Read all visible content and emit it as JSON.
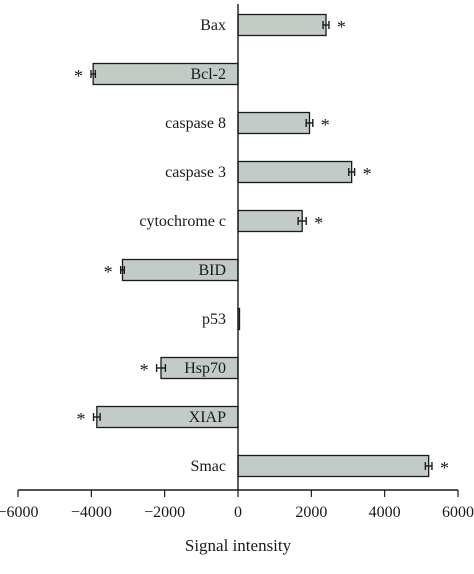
{
  "chart_data": {
    "type": "bar",
    "orientation": "horizontal",
    "categories": [
      "Bax",
      "Bcl-2",
      "caspase 8",
      "caspase 3",
      "cytochrome c",
      "BID",
      "p53",
      "Hsp70",
      "XIAP",
      "Smac"
    ],
    "values": [
      2400,
      -3950,
      1950,
      3100,
      1750,
      -3150,
      30,
      -2100,
      -3850,
      5200
    ],
    "errors": [
      80,
      60,
      90,
      80,
      110,
      50,
      0,
      120,
      90,
      90
    ],
    "significant": [
      true,
      true,
      true,
      true,
      true,
      true,
      false,
      true,
      true,
      true
    ],
    "significance_marker": "*",
    "xlabel": "Signal intensity",
    "ylabel": "",
    "title": "",
    "xlim": [
      -6000,
      6000
    ],
    "xticks": [
      -6000,
      -4000,
      -2000,
      0,
      2000,
      4000,
      6000
    ],
    "xtick_labels": [
      "−6000",
      "−4000",
      "−2000",
      "0",
      "2000",
      "4000",
      "6000"
    ],
    "grid": false,
    "colors": {
      "bar_fill": "#c3cbc6",
      "bar_edge": "#1a1a1a"
    }
  }
}
